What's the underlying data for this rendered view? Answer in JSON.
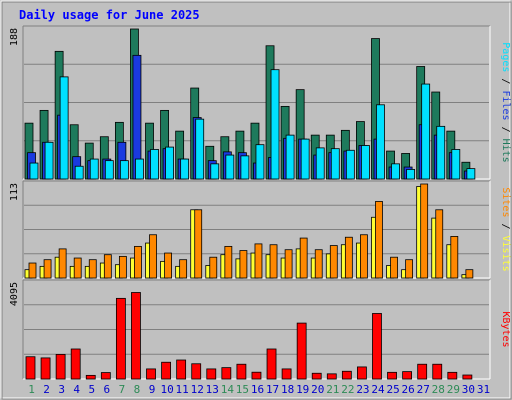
{
  "title": "Daily usage for June 2025",
  "colors": {
    "background": "#c0c0c0",
    "plot_background": "#c0c0c0",
    "title": "#0000ff",
    "gridline": "#808080",
    "hits": "#1e7a5c",
    "files": "#1a3ae0",
    "pages": "#00e0ff",
    "visits": "#ffff33",
    "sites": "#ff8800",
    "kbytes": "#ff0000",
    "weekend_label": "#2e8b57",
    "weekday_label": "#0000cc"
  },
  "chart_data": [
    {
      "type": "bar",
      "panel": "hits-files-pages",
      "title": "Daily usage for June 2025",
      "categories": [
        "1",
        "2",
        "3",
        "4",
        "5",
        "6",
        "7",
        "8",
        "9",
        "10",
        "11",
        "12",
        "13",
        "14",
        "15",
        "16",
        "17",
        "18",
        "19",
        "20",
        "21",
        "22",
        "23",
        "24",
        "25",
        "26",
        "27",
        "28",
        "29",
        "30",
        "31"
      ],
      "ymax_label": "188",
      "ylim": [
        0,
        188
      ],
      "axis_labels": [
        "Hits",
        "Files",
        "Pages"
      ],
      "series": [
        {
          "name": "Hits",
          "values": [
            70,
            86,
            160,
            68,
            45,
            53,
            71,
            188,
            70,
            86,
            60,
            114,
            41,
            53,
            60,
            70,
            167,
            91,
            112,
            55,
            55,
            61,
            72,
            176,
            35,
            32,
            141,
            109,
            60,
            21,
            0
          ]
        },
        {
          "name": "Files",
          "values": [
            33,
            46,
            80,
            28,
            23,
            25,
            46,
            155,
            35,
            38,
            25,
            77,
            23,
            34,
            33,
            20,
            27,
            51,
            50,
            30,
            33,
            35,
            42,
            50,
            15,
            15,
            68,
            55,
            33,
            10,
            0
          ]
        },
        {
          "name": "Pages",
          "values": [
            20,
            46,
            128,
            16,
            25,
            23,
            23,
            25,
            37,
            40,
            25,
            75,
            19,
            30,
            29,
            43,
            137,
            55,
            50,
            39,
            38,
            36,
            42,
            93,
            19,
            12,
            119,
            66,
            37,
            13,
            0
          ]
        }
      ],
      "weekend_days": [
        1,
        7,
        8,
        14,
        15,
        21,
        22,
        28,
        29
      ]
    },
    {
      "type": "bar",
      "panel": "visits-sites",
      "ymax_label": "113",
      "ylim": [
        0,
        113
      ],
      "axis_labels": [
        "Visits",
        "Sites"
      ],
      "series": [
        {
          "name": "Visits",
          "values": [
            10,
            14,
            25,
            14,
            14,
            18,
            16,
            24,
            42,
            20,
            14,
            82,
            15,
            28,
            23,
            30,
            28,
            24,
            35,
            24,
            29,
            40,
            42,
            73,
            15,
            10,
            110,
            72,
            40,
            4,
            0
          ]
        },
        {
          "name": "Sites",
          "values": [
            18,
            22,
            35,
            24,
            22,
            28,
            26,
            38,
            52,
            30,
            22,
            82,
            25,
            38,
            33,
            41,
            40,
            34,
            48,
            34,
            39,
            49,
            52,
            92,
            25,
            22,
            113,
            82,
            50,
            10,
            0
          ]
        }
      ]
    },
    {
      "type": "bar",
      "panel": "kbytes",
      "ymax_label": "4095",
      "ylim": [
        0,
        4095
      ],
      "axis_labels": [
        "KBytes"
      ],
      "series": [
        {
          "name": "KBytes",
          "values": [
            950,
            900,
            1050,
            1280,
            155,
            275,
            3440,
            3690,
            430,
            715,
            810,
            650,
            430,
            485,
            630,
            290,
            1280,
            430,
            2385,
            245,
            220,
            330,
            515,
            2795,
            285,
            315,
            630,
            630,
            285,
            170,
            0
          ]
        }
      ]
    }
  ]
}
